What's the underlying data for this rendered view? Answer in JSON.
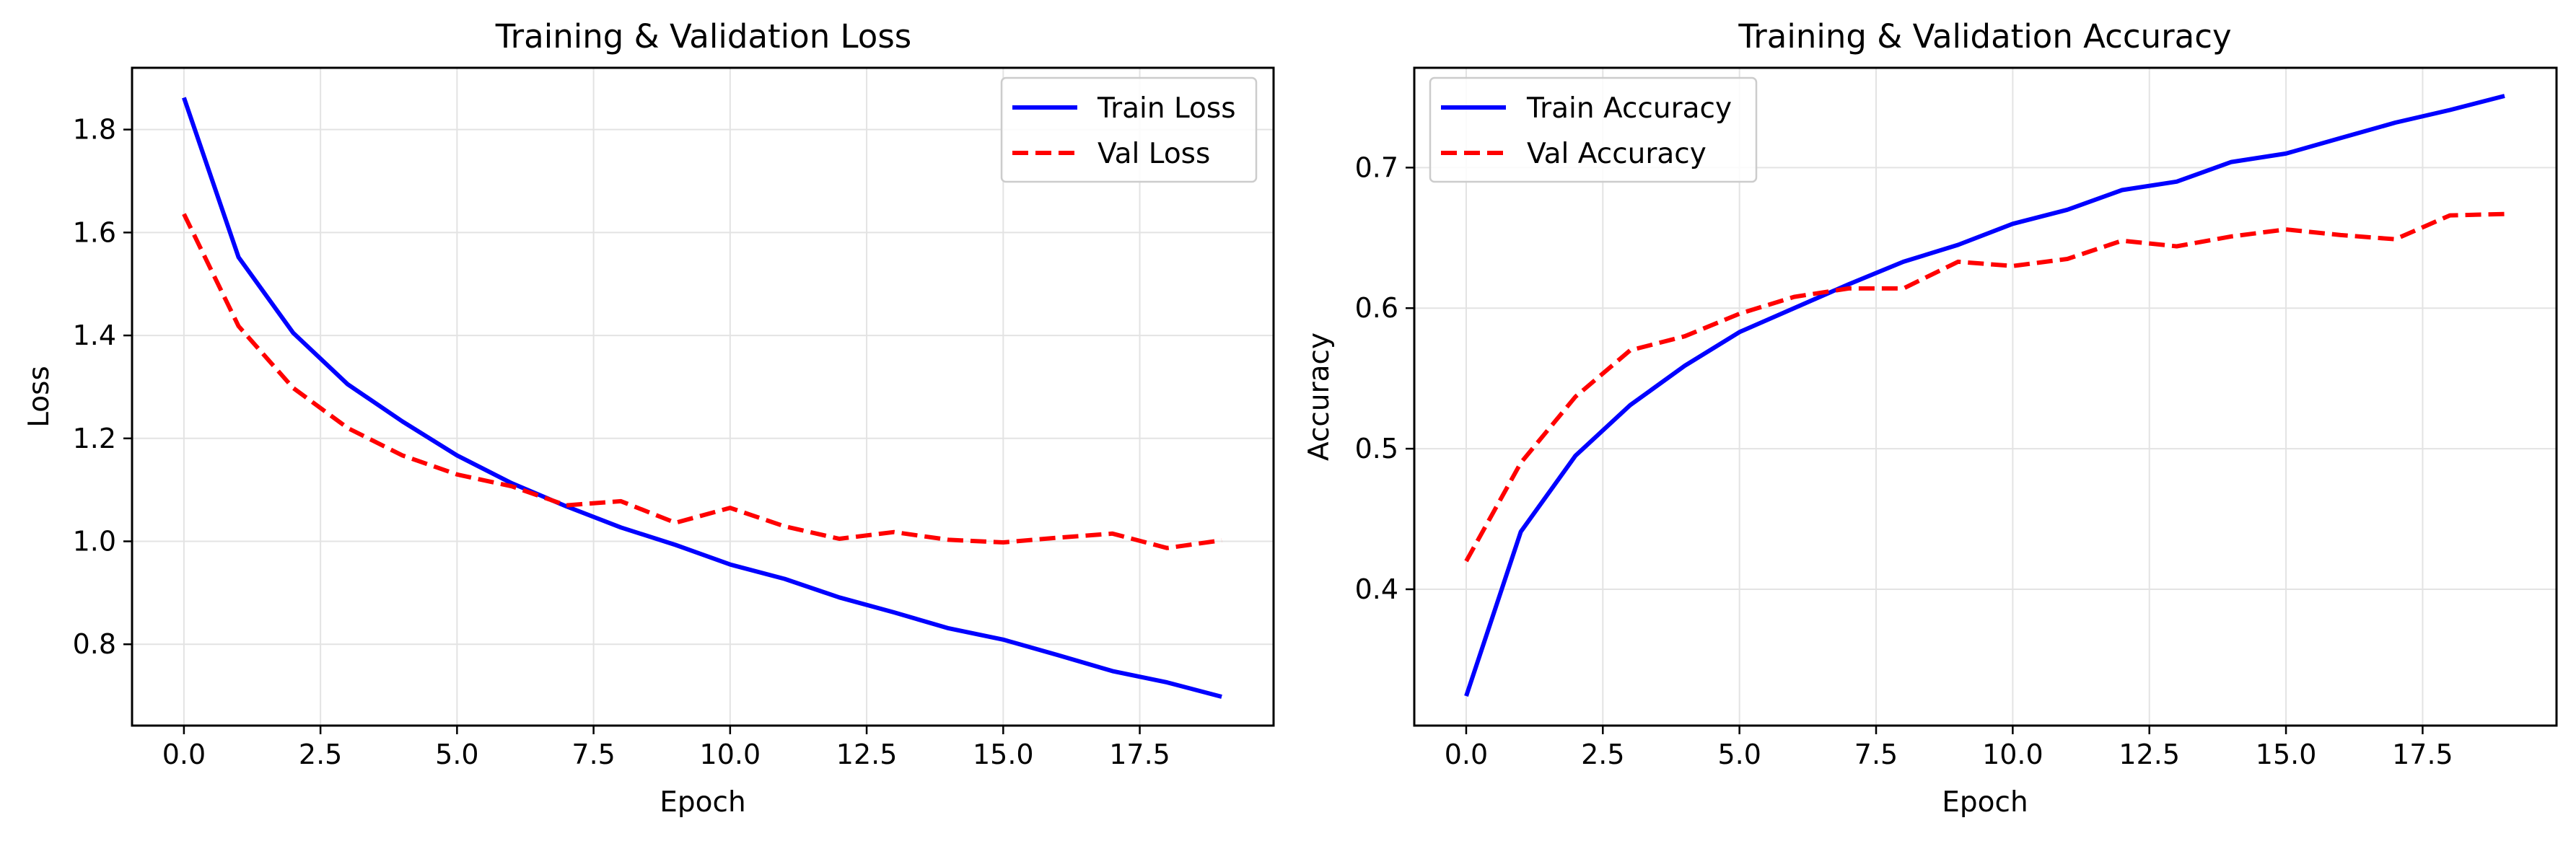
{
  "colors": {
    "train": "#0000ff",
    "val": "#ff0000",
    "grid": "#e3e3e3",
    "axes": "#000000"
  },
  "chart_data": [
    {
      "type": "line",
      "title": "Training & Validation Loss",
      "xlabel": "Epoch",
      "ylabel": "Loss",
      "xlim": [
        -0.95,
        19.95
      ],
      "ylim": [
        0.642,
        1.92
      ],
      "xticks": [
        0,
        2.5,
        5,
        7.5,
        10,
        12.5,
        15,
        17.5
      ],
      "xtick_labels": [
        "0.0",
        "2.5",
        "5.0",
        "7.5",
        "10.0",
        "12.5",
        "15.0",
        "17.5"
      ],
      "yticks": [
        0.8,
        1.0,
        1.2,
        1.4,
        1.6,
        1.8
      ],
      "ytick_labels": [
        "0.8",
        "1.0",
        "1.2",
        "1.4",
        "1.6",
        "1.8"
      ],
      "grid": true,
      "legend": "upper right",
      "x": [
        0,
        1,
        2,
        3,
        4,
        5,
        6,
        7,
        8,
        9,
        10,
        11,
        12,
        13,
        14,
        15,
        16,
        17,
        18,
        19
      ],
      "series": [
        {
          "name": "Train Loss",
          "style": "solid",
          "color_key": "train",
          "values": [
            1.862,
            1.552,
            1.405,
            1.305,
            1.233,
            1.167,
            1.113,
            1.068,
            1.027,
            0.993,
            0.955,
            0.927,
            0.891,
            0.862,
            0.831,
            0.809,
            0.779,
            0.748,
            0.726,
            0.698
          ]
        },
        {
          "name": "Val Loss",
          "style": "dashed",
          "color_key": "val",
          "values": [
            1.636,
            1.418,
            1.298,
            1.22,
            1.167,
            1.13,
            1.107,
            1.07,
            1.078,
            1.036,
            1.065,
            1.029,
            1.005,
            1.018,
            1.003,
            0.998,
            1.007,
            1.015,
            0.987,
            1.002
          ]
        }
      ]
    },
    {
      "type": "line",
      "title": "Training & Validation Accuracy",
      "xlabel": "Epoch",
      "ylabel": "Accuracy",
      "xlim": [
        -0.95,
        19.95
      ],
      "ylim": [
        0.303,
        0.771
      ],
      "xticks": [
        0,
        2.5,
        5,
        7.5,
        10,
        12.5,
        15,
        17.5
      ],
      "xtick_labels": [
        "0.0",
        "2.5",
        "5.0",
        "7.5",
        "10.0",
        "12.5",
        "15.0",
        "17.5"
      ],
      "yticks": [
        0.4,
        0.5,
        0.6,
        0.7
      ],
      "ytick_labels": [
        "0.4",
        "0.5",
        "0.6",
        "0.7"
      ],
      "grid": true,
      "legend": "upper left",
      "x": [
        0,
        1,
        2,
        3,
        4,
        5,
        6,
        7,
        8,
        9,
        10,
        11,
        12,
        13,
        14,
        15,
        16,
        17,
        18,
        19
      ],
      "series": [
        {
          "name": "Train Accuracy",
          "style": "solid",
          "color_key": "train",
          "values": [
            0.324,
            0.441,
            0.495,
            0.531,
            0.559,
            0.583,
            0.6,
            0.617,
            0.633,
            0.645,
            0.66,
            0.67,
            0.684,
            0.69,
            0.704,
            0.71,
            0.721,
            0.732,
            0.741,
            0.751
          ]
        },
        {
          "name": "Val Accuracy",
          "style": "dashed",
          "color_key": "val",
          "values": [
            0.42,
            0.49,
            0.537,
            0.57,
            0.58,
            0.596,
            0.608,
            0.614,
            0.614,
            0.633,
            0.63,
            0.635,
            0.648,
            0.644,
            0.651,
            0.656,
            0.652,
            0.649,
            0.666,
            0.667
          ]
        }
      ]
    }
  ]
}
